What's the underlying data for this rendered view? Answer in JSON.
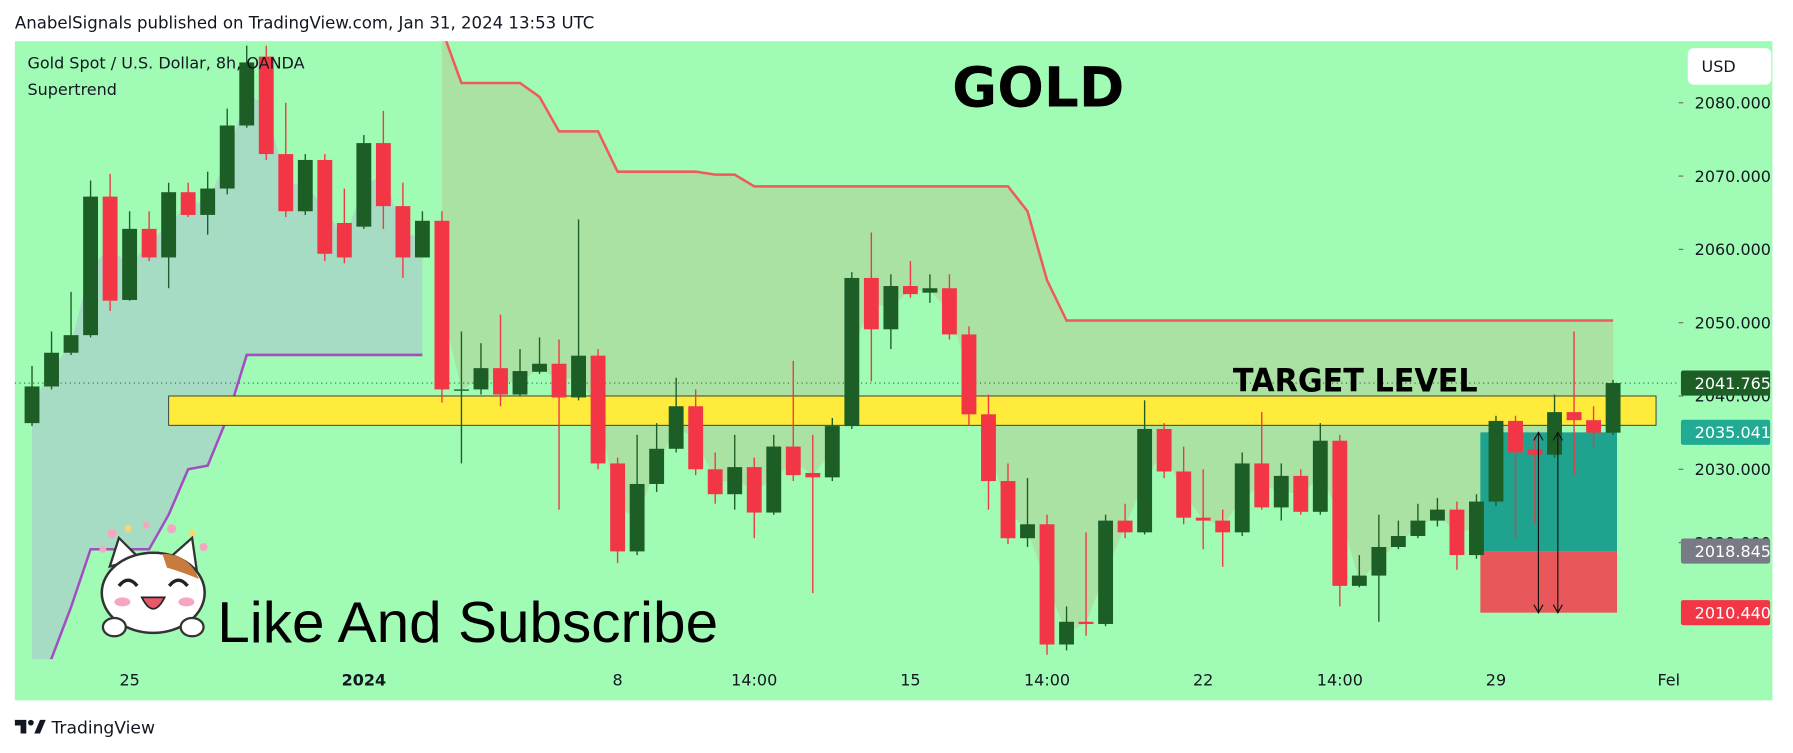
{
  "header": "AnabelSignals published on TradingView.com, Jan 31, 2024 13:53 UTC",
  "footer": "TradingView",
  "chart_data": {
    "type": "candlestick",
    "title": "GOLD",
    "symbol": "Gold Spot / U.S. Dollar, 8h, OANDA",
    "currency": "USD",
    "annotation": "Like And Subscribe",
    "up_color": "#1d5e27",
    "down_color": "#f23645",
    "categories": [
      null,
      null,
      null,
      null,
      null,
      "25",
      null,
      null,
      null,
      null,
      null,
      null,
      null,
      null,
      null,
      null,
      null,
      "2024",
      null,
      null,
      null,
      null,
      null,
      null,
      null,
      null,
      null,
      null,
      null,
      null,
      "8",
      null,
      null,
      null,
      null,
      null,
      null,
      "14:00",
      null,
      null,
      null,
      null,
      null,
      null,
      null,
      "15",
      null,
      null,
      null,
      null,
      null,
      null,
      "14:00",
      null,
      null,
      null,
      null,
      null,
      null,
      null,
      "22",
      null,
      null,
      null,
      null,
      null,
      null,
      "14:00",
      null,
      null,
      null,
      null,
      null,
      null,
      null,
      "29",
      null,
      null,
      null,
      null,
      null,
      null,
      null,
      null,
      "Feb",
      null
    ],
    "open": [
      2036.3,
      2041.3,
      2045.9,
      2048.3,
      2067.2,
      2053.1,
      2062.8,
      2058.9,
      2067.8,
      2064.7,
      2068.3,
      2076.9,
      2086.3,
      2073.0,
      2065.2,
      2072.2,
      2063.6,
      2063.1,
      2074.5,
      2065.9,
      2058.9,
      2063.9,
      2040.8,
      2040.9,
      2043.8,
      2040.2,
      2043.3,
      2044.4,
      2039.8,
      2045.5,
      2030.8,
      2018.8,
      2028.0,
      2032.8,
      2038.6,
      2030.0,
      2026.6,
      2030.3,
      2024.1,
      2033.1,
      2029.5,
      2028.9,
      2035.9,
      2056.1,
      2049.1,
      2055.0,
      2054.1,
      2054.7,
      2048.4,
      2037.5,
      2028.4,
      2020.6,
      2022.5,
      2006.1,
      2009.2,
      2008.9,
      2023.0,
      2021.4,
      2035.5,
      2029.7,
      2023.4,
      2023.0,
      2021.4,
      2030.8,
      2024.8,
      2029.1,
      2024.2,
      2033.9,
      2014.1,
      2015.5,
      2019.4,
      2020.9,
      2023.0,
      2024.5,
      2018.3,
      2025.6,
      2036.6,
      2032.7,
      2032.0,
      2037.8,
      2036.7,
      2035.0,
      null,
      null,
      null,
      null
    ],
    "high": [
      2044.1,
      2048.8,
      2054.2,
      2069.4,
      2070.3,
      2065.2,
      2065.2,
      2069.1,
      2069.1,
      2070.6,
      2079.2,
      2087.8,
      2087.8,
      2080.0,
      2073.0,
      2073.0,
      2068.3,
      2075.6,
      2078.9,
      2069.1,
      2065.2,
      2065.2,
      2048.8,
      2047.2,
      2051.1,
      2046.4,
      2048.0,
      2047.7,
      2064.1,
      2046.4,
      2031.6,
      2034.7,
      2036.3,
      2042.5,
      2040.9,
      2032.3,
      2034.7,
      2031.6,
      2034.7,
      2044.8,
      2034.7,
      2037.0,
      2056.9,
      2062.3,
      2056.6,
      2058.4,
      2056.6,
      2056.6,
      2049.5,
      2040.2,
      2030.8,
      2028.8,
      2023.8,
      2011.3,
      2021.4,
      2023.8,
      2025.3,
      2039.4,
      2036.3,
      2033.1,
      2030.0,
      2024.5,
      2032.3,
      2037.8,
      2030.8,
      2030.0,
      2036.3,
      2034.7,
      2018.3,
      2023.8,
      2023.0,
      2025.3,
      2026.1,
      2025.6,
      2026.6,
      2037.3,
      2037.3,
      2034.7,
      2040.2,
      2048.8,
      2038.6,
      2042.2,
      null,
      null,
      null,
      null
    ],
    "low": [
      2035.9,
      2040.9,
      2045.6,
      2048.0,
      2051.6,
      2053.0,
      2058.4,
      2054.7,
      2064.4,
      2062.0,
      2067.5,
      2076.6,
      2072.2,
      2064.4,
      2064.7,
      2058.4,
      2058.1,
      2062.8,
      2062.8,
      2056.1,
      2058.9,
      2039.1,
      2030.8,
      2040.2,
      2038.6,
      2040.0,
      2043.0,
      2024.5,
      2039.4,
      2030.0,
      2017.2,
      2018.3,
      2026.9,
      2032.3,
      2029.2,
      2025.3,
      2024.5,
      2020.6,
      2023.8,
      2028.4,
      2013.1,
      2028.4,
      2035.5,
      2042.0,
      2046.4,
      2053.4,
      2052.7,
      2047.7,
      2035.9,
      2024.5,
      2019.8,
      2019.4,
      2004.7,
      2005.3,
      2007.3,
      2008.6,
      2020.6,
      2021.1,
      2028.8,
      2022.5,
      2019.1,
      2016.7,
      2020.9,
      2024.5,
      2023.0,
      2023.8,
      2023.8,
      2011.3,
      2013.9,
      2009.2,
      2019.1,
      2020.6,
      2022.2,
      2016.3,
      2017.8,
      2025.0,
      2020.6,
      2022.5,
      2031.6,
      2029.2,
      2033.1,
      2034.7,
      null,
      null,
      null,
      null
    ],
    "close": [
      2041.3,
      2045.9,
      2048.3,
      2067.2,
      2053.0,
      2062.8,
      2058.9,
      2067.8,
      2064.7,
      2068.3,
      2076.9,
      2085.5,
      2073.0,
      2065.2,
      2072.2,
      2059.4,
      2058.9,
      2074.5,
      2065.9,
      2058.9,
      2063.9,
      2040.9,
      2040.9,
      2043.8,
      2040.2,
      2043.4,
      2044.4,
      2039.8,
      2045.5,
      2030.8,
      2018.8,
      2028.0,
      2032.8,
      2038.6,
      2030.0,
      2026.6,
      2030.3,
      2024.1,
      2033.1,
      2029.2,
      2028.9,
      2035.9,
      2056.1,
      2049.1,
      2055.0,
      2053.9,
      2054.7,
      2048.4,
      2037.5,
      2028.4,
      2020.6,
      2022.5,
      2006.1,
      2009.2,
      2008.9,
      2023.0,
      2021.4,
      2035.5,
      2029.7,
      2023.4,
      2023.0,
      2021.4,
      2030.8,
      2024.8,
      2029.1,
      2024.2,
      2033.9,
      2014.1,
      2015.5,
      2019.4,
      2020.9,
      2023.0,
      2024.5,
      2018.3,
      2025.6,
      2036.6,
      2032.3,
      2032.0,
      2037.8,
      2036.7,
      2035.0,
      2041.765,
      null,
      null,
      null,
      null
    ],
    "indicator": {
      "name": "Supertrend",
      "up": [
        2000.3,
        2004.2,
        2011.2,
        2019.1,
        2019.1,
        2019.1,
        2019.1,
        2023.8,
        2030.0,
        2030.5,
        2037.0,
        2045.6,
        2045.6,
        2045.6,
        2045.6,
        2045.6,
        2045.6,
        2045.6,
        2045.6,
        2045.6,
        2045.6,
        null,
        null,
        null,
        null,
        null,
        null,
        null,
        null,
        null,
        null,
        null,
        null,
        null,
        null,
        null,
        null,
        null,
        null,
        null,
        null,
        null,
        null,
        null,
        null,
        null,
        null,
        null,
        null,
        null,
        null,
        null,
        null,
        null,
        null,
        null,
        null,
        null,
        null,
        null,
        null,
        null,
        null,
        null,
        null,
        null,
        null,
        null,
        null,
        null,
        null,
        null,
        null,
        null,
        null,
        null,
        null,
        null,
        null,
        null,
        null,
        null,
        null,
        null,
        null,
        null
      ],
      "down": [
        null,
        null,
        null,
        null,
        null,
        null,
        null,
        null,
        null,
        null,
        null,
        null,
        null,
        null,
        null,
        null,
        null,
        null,
        null,
        null,
        null,
        2090.0,
        2082.7,
        2082.7,
        2082.7,
        2082.7,
        2080.8,
        2076.1,
        2076.1,
        2076.1,
        2070.6,
        2070.6,
        2070.6,
        2070.6,
        2070.6,
        2070.2,
        2070.2,
        2068.6,
        2068.6,
        2068.6,
        2068.6,
        2068.6,
        2068.6,
        2068.6,
        2068.6,
        2068.6,
        2068.6,
        2068.6,
        2068.6,
        2068.6,
        2068.6,
        2065.2,
        2055.8,
        2050.3,
        2050.3,
        2050.3,
        2050.3,
        2050.3,
        2050.3,
        2050.3,
        2050.3,
        2050.3,
        2050.3,
        2050.3,
        2050.3,
        2050.3,
        2050.3,
        2050.3,
        2050.3,
        2050.3,
        2050.3,
        2050.3,
        2050.3,
        2050.3,
        2050.3,
        2050.3,
        2050.3,
        2050.3,
        2050.3,
        2050.3,
        2050.3,
        2050.3,
        null,
        null,
        null,
        null
      ],
      "up_color": "#a24ec1",
      "down_color": "#f05a5a",
      "up_fill": "#a7dcc4",
      "down_fill": "#a9e2a3"
    },
    "zone": {
      "label": "TARGET LEVEL",
      "high": 2040.0,
      "low": 2036.0,
      "start": 7,
      "end": 83.2,
      "color": "#ffeb3b"
    },
    "position": {
      "target": 2035.041,
      "entry": 2018.845,
      "stop": {
        "value": 2010.44,
        "label": "2010.440"
      },
      "start": 74.2,
      "end": 81.2,
      "profit_color": "#1fa38e",
      "loss_color": "#e8585b",
      "target_color": "#22ab94",
      "entry_color": "#787b86",
      "stop_color": "#f23645"
    },
    "ylim": [
      2004.1,
      2088.4
    ],
    "yticks": [
      {
        "value": 2020,
        "label": "2020.000"
      },
      {
        "value": 2030,
        "label": "2030.000"
      },
      {
        "value": 2040,
        "label": "2040.000"
      },
      {
        "value": 2050,
        "label": "2050.000"
      },
      {
        "value": 2060,
        "label": "2060.000"
      },
      {
        "value": 2070,
        "label": "2070.000"
      },
      {
        "value": 2080,
        "label": "2080.000"
      }
    ],
    "grid": false
  }
}
